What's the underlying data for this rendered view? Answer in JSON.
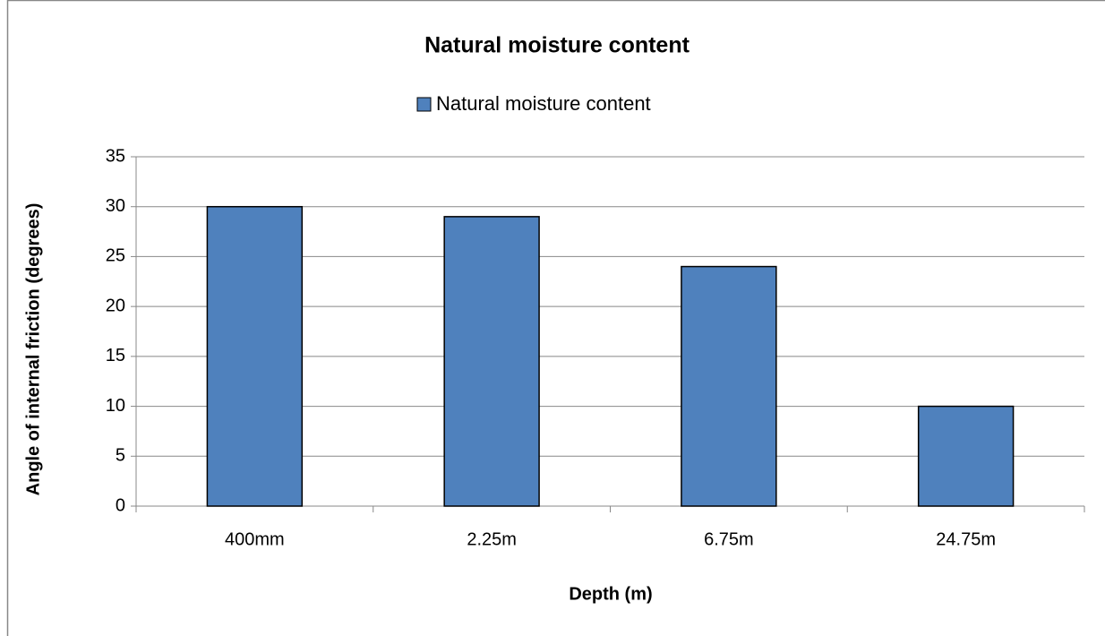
{
  "chart_data": {
    "type": "bar",
    "title": "Natural moisture content",
    "categories": [
      "400mm",
      "2.25m",
      "6.75m",
      "24.75m"
    ],
    "series": [
      {
        "name": "Natural moisture content",
        "color": "#4f81bd",
        "values": [
          30,
          29,
          24,
          10
        ]
      }
    ],
    "xlabel": "Depth (m)",
    "ylabel": "Angle of internal friction (degrees)",
    "ylim": [
      0,
      35
    ],
    "yticks": [
      0,
      5,
      10,
      15,
      20,
      25,
      30,
      35
    ],
    "grid": true,
    "legend": "top"
  }
}
